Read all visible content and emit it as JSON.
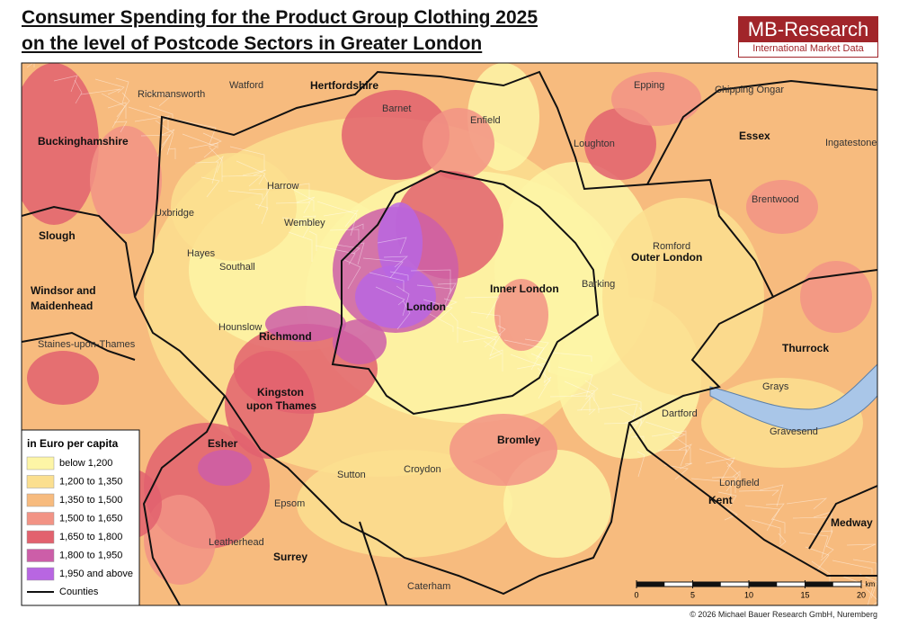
{
  "header": {
    "title_line1": "Consumer Spending for the Product Group Clothing 2025",
    "title_line2": "on the level of Postcode Sectors in Greater London",
    "logo_name": "MB-Research",
    "logo_tagline": "International Market Data"
  },
  "map": {
    "labels": [
      "Hertfordshire",
      "Buckinghamshire",
      "Essex",
      "Slough",
      "Windsor and",
      "Maidenhead",
      "Outer London",
      "Inner London",
      "London",
      "Thurrock",
      "Kent",
      "Medway",
      "Surrey",
      "Richmond",
      "Kingston",
      "upon Thames",
      "Esher",
      "Bromley",
      "Barnet",
      "Enfield",
      "Harrow",
      "Wembley",
      "Hounslow",
      "Croydon",
      "Sutton",
      "Epsom",
      "Leatherhead",
      "Watford",
      "Rickmansworth",
      "Epping",
      "Brentwood",
      "Romford",
      "Dartford",
      "Uxbridge",
      "Hayes",
      "Southall",
      "Barking",
      "Gravesend",
      "Caterham",
      "Staines-upon-Thames",
      "Chipping Ongar",
      "Loughton",
      "Grays",
      "Longfield",
      "Ingatestone"
    ]
  },
  "legend": {
    "title": "in Euro per capita",
    "items": [
      {
        "label": "below 1,200",
        "color": "#fdf5a6"
      },
      {
        "label": "1,200 to 1,350",
        "color": "#fbdf8f"
      },
      {
        "label": "1,350 to 1,500",
        "color": "#f7bb7e"
      },
      {
        "label": "1,500 to 1,650",
        "color": "#f29385"
      },
      {
        "label": "1,650 to 1,800",
        "color": "#e2626e"
      },
      {
        "label": "1,800 to 1,950",
        "color": "#cc5ea8"
      },
      {
        "label": "1,950 and above",
        "color": "#b866e2"
      }
    ],
    "boundary_label": "Counties"
  },
  "scale_bar": {
    "ticks": [
      0,
      5,
      10,
      15,
      20
    ],
    "unit": "km"
  },
  "footer": {
    "copyright": "© 2026 Michael Bauer Research GmbH, Nuremberg"
  }
}
